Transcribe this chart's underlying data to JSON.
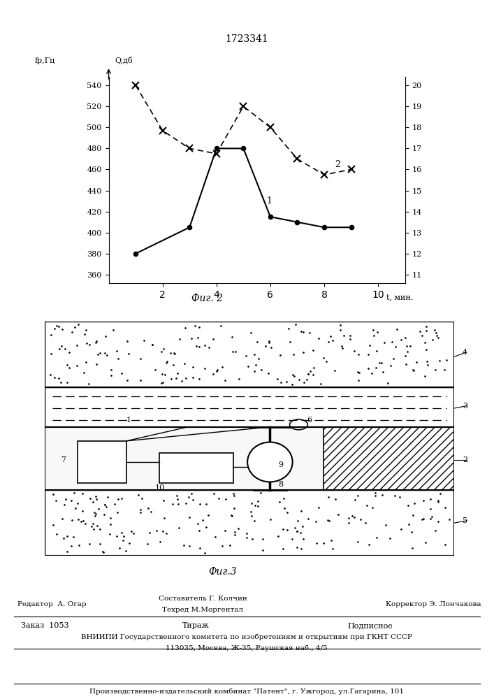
{
  "title": "1723341",
  "fig2_caption": "Фиг. 2",
  "fig3_caption": "Фиг.3",
  "curve1_x": [
    1,
    3,
    4,
    5,
    6,
    7,
    8,
    9
  ],
  "curve1_y": [
    380,
    405,
    480,
    480,
    415,
    410,
    405,
    405
  ],
  "curve2_x": [
    1,
    2,
    3,
    4,
    5,
    6,
    7,
    8,
    9
  ],
  "curve2_y": [
    540,
    497,
    480,
    475,
    520,
    500,
    470,
    455,
    460
  ],
  "left_yticks": [
    360,
    380,
    400,
    420,
    440,
    460,
    480,
    500,
    520,
    540
  ],
  "right_yticks": [
    11,
    12,
    13,
    14,
    15,
    16,
    17,
    18,
    19,
    20
  ],
  "xticks": [
    2,
    4,
    6,
    8,
    10
  ],
  "xlabel": "t, мин.",
  "ylabel_left": "fр,Гц",
  "ylabel_right": "Q,дб",
  "label1": "1",
  "label2": "2",
  "footer_editor": "Редактор  А. Огар",
  "footer_sostavitel": "Составитель Г. Колчин",
  "footer_tehred": "Техред М.Моргентал",
  "footer_korrektor": "Корректор Э. Лончакова",
  "footer_zakaz": "Заказ  1053",
  "footer_tirazh": "Тираж",
  "footer_podpisnoe": "Подписное",
  "footer_vniip1": "ВНИИПИ Государственного комитета по изобретениям и открытиям при ГКНТ СССР",
  "footer_vniip2": "113035, Москва, Ж-35, Раушская наб., 4/5",
  "footer_patent": "Производственно-издательский комбинат \"Патент\", г. Ужгород, ул.Гагарина, 101"
}
